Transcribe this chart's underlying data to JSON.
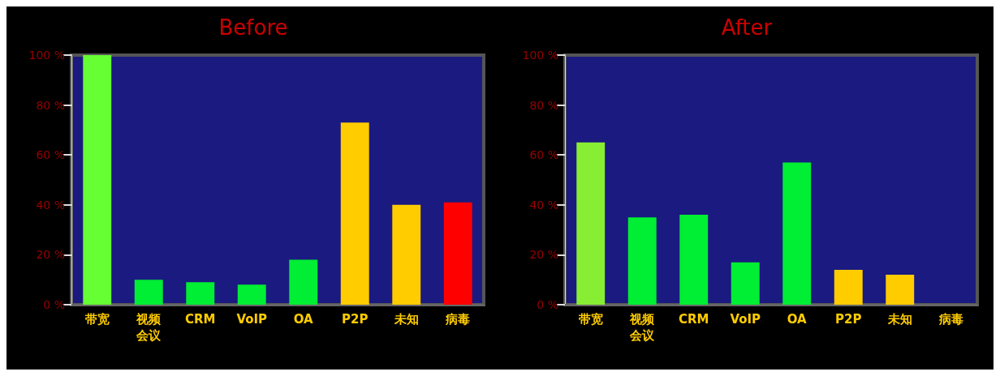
{
  "chart_data": [
    {
      "type": "bar",
      "title": "Before",
      "categories": [
        "带宽",
        "视频会议",
        "CRM",
        "VoIP",
        "OA",
        "P2P",
        "未知",
        "病毒"
      ],
      "values": [
        100,
        10,
        9,
        8,
        18,
        73,
        40,
        41
      ],
      "colors": [
        "#66ff33",
        "#00ee33",
        "#00ee33",
        "#00ee33",
        "#00ee33",
        "#ffcc00",
        "#ffcc00",
        "#ff0000"
      ],
      "ylim": [
        0,
        100
      ],
      "yticks": [
        {
          "value": 0,
          "label": "0 %"
        },
        {
          "value": 20,
          "label": "20 %"
        },
        {
          "value": 40,
          "label": "40 %"
        },
        {
          "value": 60,
          "label": "60 %"
        },
        {
          "value": 80,
          "label": "80 %"
        },
        {
          "value": 100,
          "label": "100 %"
        }
      ],
      "grid": false
    },
    {
      "type": "bar",
      "title": "After",
      "categories": [
        "带宽",
        "视频会议",
        "CRM",
        "VoIP",
        "OA",
        "P2P",
        "未知",
        "病毒"
      ],
      "values": [
        65,
        35,
        36,
        17,
        57,
        14,
        12,
        null
      ],
      "colors": [
        "#88ee33",
        "#00ee33",
        "#00ee33",
        "#00ee33",
        "#00ee33",
        "#ffcc00",
        "#ffcc00",
        "#ff0000"
      ],
      "ylim": [
        0,
        100
      ],
      "yticks": [
        {
          "value": 0,
          "label": "0 %"
        },
        {
          "value": 20,
          "label": "20 %"
        },
        {
          "value": 40,
          "label": "40 %"
        },
        {
          "value": 60,
          "label": "60 %"
        },
        {
          "value": 80,
          "label": "80 %"
        },
        {
          "value": 100,
          "label": "100 %"
        }
      ],
      "grid": false
    }
  ]
}
